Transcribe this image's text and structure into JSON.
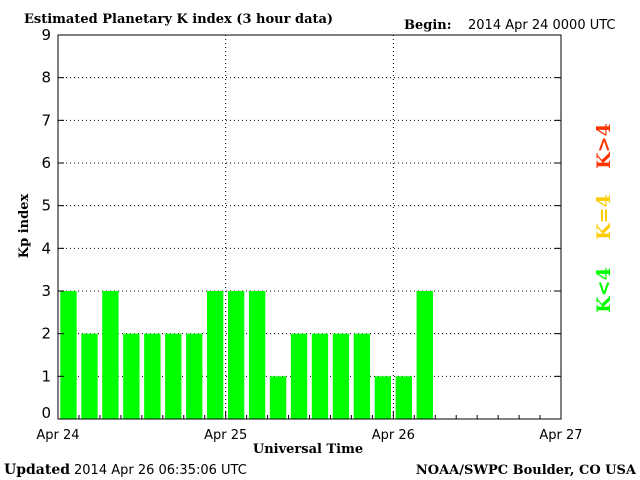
{
  "header": {
    "title": "Estimated Planetary K index (3 hour data)",
    "begin_label": "Begin:",
    "begin_value": "2014 Apr 24 0000 UTC"
  },
  "footer": {
    "updated_label": "Updated",
    "updated_value": "2014 Apr 26 06:35:06 UTC",
    "source": "NOAA/SWPC Boulder, CO USA"
  },
  "legend": {
    "high": "K>4",
    "mid": "K=4",
    "low": "K<4"
  },
  "colors": {
    "bar_low": "#00ff00",
    "legend_high": "#ff3300",
    "legend_mid": "#ffcc00",
    "legend_low": "#00ff00"
  },
  "chart_data": {
    "type": "bar",
    "title": "Estimated Planetary K index (3 hour data)",
    "xlabel": "Universal Time",
    "ylabel": "Kp index",
    "ylim": [
      0,
      9
    ],
    "yticks": [
      0,
      1,
      2,
      3,
      4,
      5,
      6,
      7,
      8,
      9
    ],
    "x_tick_labels": [
      "Apr 24",
      "Apr 25",
      "Apr 26",
      "Apr 27"
    ],
    "x_range_days": [
      0,
      3
    ],
    "bar_interval_hours": 3,
    "grid": "dotted",
    "values": [
      3,
      2,
      3,
      2,
      2,
      2,
      2,
      3,
      3,
      3,
      1,
      2,
      2,
      2,
      2,
      1,
      1,
      3
    ]
  }
}
